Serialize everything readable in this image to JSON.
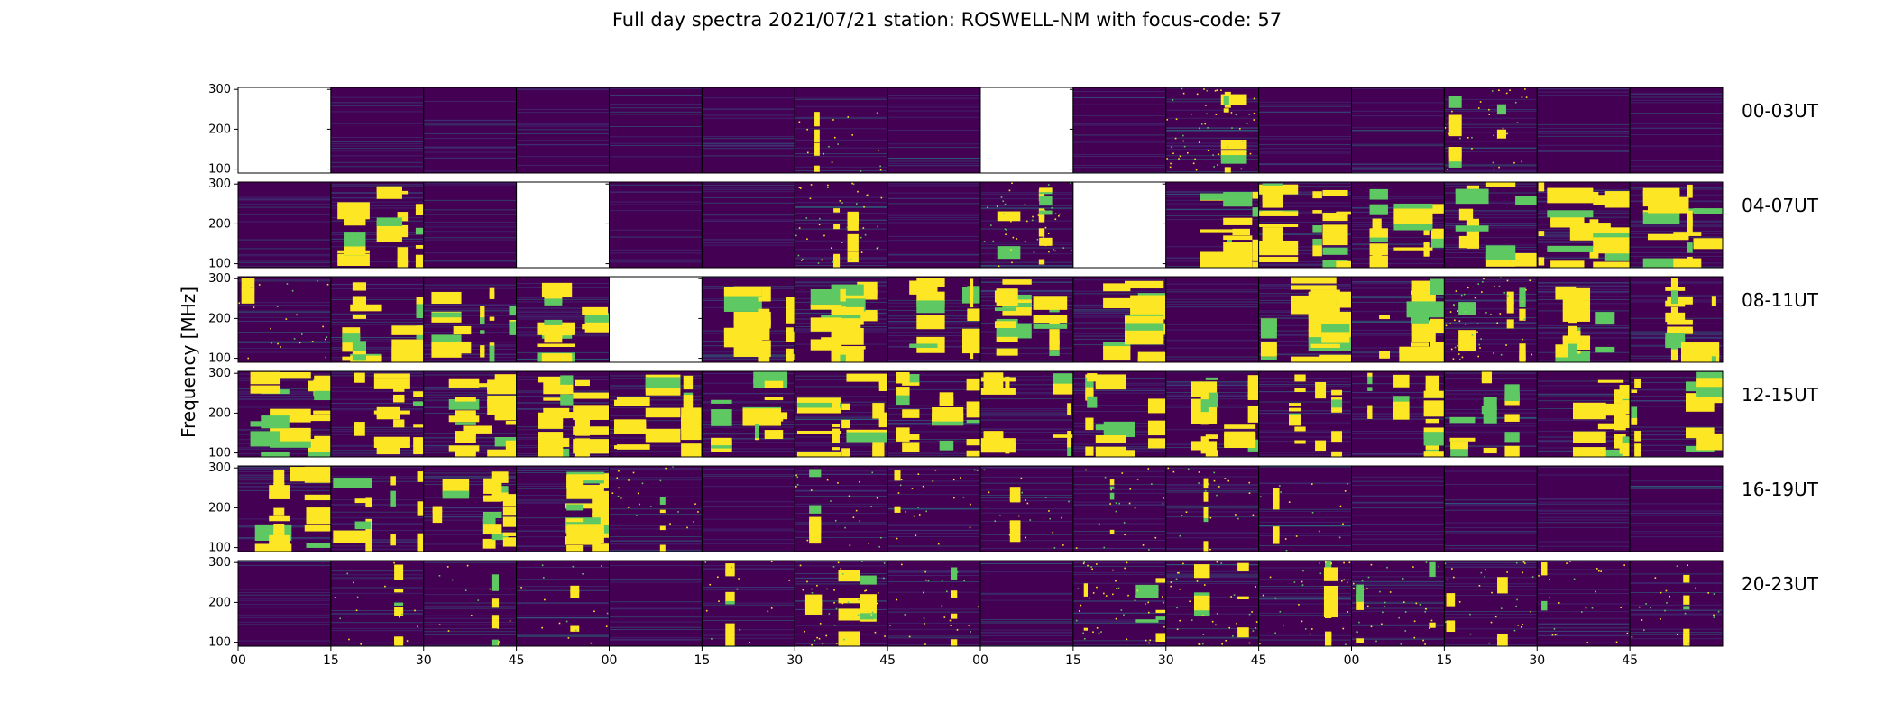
{
  "chart_data": {
    "type": "heatmap",
    "title": "Full day spectra 2021/07/21 station: ROSWELL-NM with focus-code: 57",
    "ylabel": "Frequency [MHz]",
    "yticks": [
      100,
      200,
      300
    ],
    "ylim": [
      90,
      305
    ],
    "xticks": [
      "00",
      "15",
      "30",
      "45",
      "00",
      "15",
      "30",
      "45",
      "00",
      "15",
      "30",
      "45",
      "00",
      "15",
      "30",
      "45"
    ],
    "colormap": [
      "#440154",
      "#3b528b",
      "#21918c",
      "#5ec962",
      "#fde725"
    ],
    "rows": [
      {
        "label": "00-03UT",
        "panels": [
          {
            "missing": true
          },
          {
            "activity": 0.05
          },
          {
            "activity": 0.04
          },
          {
            "activity": 0.05
          },
          {
            "activity": 0.04
          },
          {
            "activity": 0.05
          },
          {
            "activity": 0.1
          },
          {
            "activity": 0.05
          },
          {
            "missing": true
          },
          {
            "activity": 0.05
          },
          {
            "activity": 0.35
          },
          {
            "activity": 0.05
          },
          {
            "activity": 0.05
          },
          {
            "activity": 0.2
          },
          {
            "activity": 0.05
          },
          {
            "activity": 0.05
          }
        ]
      },
      {
        "label": "04-07UT",
        "panels": [
          {
            "activity": 0.05
          },
          {
            "activity": 0.5
          },
          {
            "activity": 0.05
          },
          {
            "missing": true
          },
          {
            "activity": 0.05
          },
          {
            "activity": 0.05
          },
          {
            "activity": 0.25
          },
          {
            "activity": 0.05
          },
          {
            "activity": 0.3
          },
          {
            "missing": true
          },
          {
            "activity": 0.6
          },
          {
            "activity": 0.6
          },
          {
            "activity": 0.6
          },
          {
            "activity": 0.6
          },
          {
            "activity": 0.75
          },
          {
            "activity": 0.6
          }
        ]
      },
      {
        "label": "08-11UT",
        "panels": [
          {
            "activity": 0.15
          },
          {
            "activity": 0.6
          },
          {
            "activity": 0.6
          },
          {
            "activity": 0.6
          },
          {
            "missing": true
          },
          {
            "activity": 0.6
          },
          {
            "activity": 0.65
          },
          {
            "activity": 0.5
          },
          {
            "activity": 0.55
          },
          {
            "activity": 0.6
          },
          {
            "activity": 0.05
          },
          {
            "activity": 0.65
          },
          {
            "activity": 0.7
          },
          {
            "activity": 0.35
          },
          {
            "activity": 0.6
          },
          {
            "activity": 0.6
          }
        ]
      },
      {
        "label": "12-15UT",
        "panels": [
          {
            "activity": 0.65
          },
          {
            "activity": 0.6
          },
          {
            "activity": 0.65
          },
          {
            "activity": 0.6
          },
          {
            "activity": 0.5
          },
          {
            "activity": 0.6
          },
          {
            "activity": 0.65
          },
          {
            "activity": 0.6
          },
          {
            "activity": 0.5
          },
          {
            "activity": 0.6
          },
          {
            "activity": 0.5
          },
          {
            "activity": 0.4
          },
          {
            "activity": 0.4
          },
          {
            "activity": 0.55
          },
          {
            "activity": 0.6
          },
          {
            "activity": 0.6
          }
        ]
      },
      {
        "label": "16-19UT",
        "panels": [
          {
            "activity": 0.7
          },
          {
            "activity": 0.6
          },
          {
            "activity": 0.65
          },
          {
            "activity": 0.6
          },
          {
            "activity": 0.15
          },
          {
            "activity": 0.05
          },
          {
            "activity": 0.15
          },
          {
            "activity": 0.15
          },
          {
            "activity": 0.15
          },
          {
            "activity": 0.15
          },
          {
            "activity": 0.15
          },
          {
            "activity": 0.1
          },
          {
            "activity": 0.05
          },
          {
            "activity": 0.05
          },
          {
            "activity": 0.05
          },
          {
            "activity": 0.05
          }
        ]
      },
      {
        "label": "20-23UT",
        "panels": [
          {
            "activity": 0.05
          },
          {
            "activity": 0.1
          },
          {
            "activity": 0.1
          },
          {
            "activity": 0.1
          },
          {
            "activity": 0.05
          },
          {
            "activity": 0.1
          },
          {
            "activity": 0.3
          },
          {
            "activity": 0.15
          },
          {
            "activity": 0.05
          },
          {
            "activity": 0.3
          },
          {
            "activity": 0.25
          },
          {
            "activity": 0.2
          },
          {
            "activity": 0.25
          },
          {
            "activity": 0.2
          },
          {
            "activity": 0.15
          },
          {
            "activity": 0.15
          }
        ]
      }
    ]
  }
}
